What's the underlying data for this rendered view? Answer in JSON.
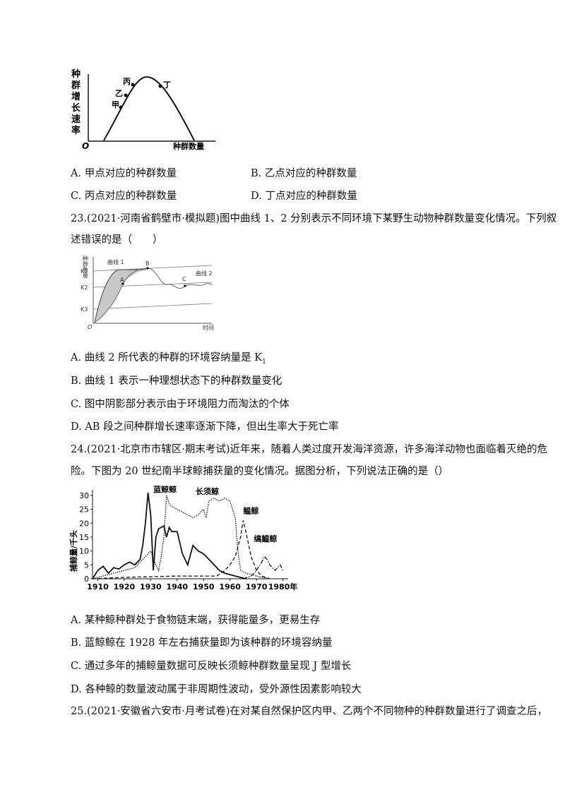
{
  "q22": {
    "figure": {
      "y_label": "种群增长速率",
      "x_label": "种群数量",
      "origin": "O",
      "points": [
        "甲",
        "乙",
        "丙",
        "丁"
      ]
    },
    "options": {
      "A": "A. 甲点对应的种群数量",
      "B": "B. 乙点对应的种群数量",
      "C": "C. 丙点对应的种群数量",
      "D": "D. 丁点对应的种群数量"
    }
  },
  "q23": {
    "stem_line1": "23.(2021·河南省鹤壁市·模拟题)图中曲线 1、2 分别表示不同环境下某野生动物种群数量变化情况。下列叙",
    "stem_line2": "述错误的是（　　）",
    "figure": {
      "y_label": "种群数量",
      "x_label": "时间",
      "origin": "O",
      "k1": "K1",
      "k2": "K2",
      "k3": "K3",
      "curve1": "曲线 1",
      "curve2": "曲线 2",
      "pA": "A",
      "pB": "B",
      "pC": "C"
    },
    "options": {
      "A_pre": "A. 曲线 2 所代表的种群的环境容纳量是 K",
      "A_sub": "1",
      "B": "B. 曲线 1 表示一种理想状态下的种群数量变化",
      "C": "C. 图中阴影部分表示由于环境阻力而淘汰的个体",
      "D": "D. AB 段之间种群增长速率逐渐下降，但出生率大于死亡率"
    }
  },
  "q24": {
    "stem_line1": "24.(2021·北京市市辖区·期末考试)近年来，随着人类过度开发海洋资源，许多海洋动物也面临着灭绝的危",
    "stem_line2": "险。下图为 20 世纪南半球鲸捕获量的变化情况。据图分析，下列说法正确的是（）",
    "options": {
      "A": "A. 某种鲸种群处于食物链末端，获得能量多，更易生存",
      "B": "B. 蓝鲸鲸在 1928 年左右捕获量即为该种群的环境容纳量",
      "C": "C. 通过多年的捕鲸量数据可反映长须鲸种群数量呈现 J 型增长",
      "D": "D. 各种鲸的数量波动属于非周期性波动，受外源性因素影响较大"
    }
  },
  "q25": {
    "stem_line1": "25.(2021·安徽省六安市·月考试卷)在对某自然保护区内甲、乙两个不同物种的种群数量进行了调查之后，"
  },
  "chart_data": {
    "type": "line",
    "ylabel": "捕鲸量/千头",
    "xlabel": "",
    "x_tick_labels": [
      "1910",
      "1920",
      "1930",
      "1940",
      "1950",
      "1960",
      "1970",
      "1980年"
    ],
    "y_tick_labels": [
      "0",
      "5",
      "10",
      "15",
      "20",
      "25",
      "30"
    ],
    "xlim": [
      1908,
      1982
    ],
    "ylim": [
      0,
      32
    ],
    "series": [
      {
        "name": "蓝鲸鲸",
        "style": "solid",
        "x": [
          1908,
          1910,
          1912,
          1914,
          1916,
          1918,
          1920,
          1922,
          1924,
          1926,
          1927,
          1928,
          1929,
          1930,
          1931,
          1932,
          1933,
          1935,
          1936,
          1937,
          1938,
          1940,
          1942,
          1944,
          1946,
          1948,
          1950,
          1952,
          1954,
          1956,
          1958,
          1960,
          1962,
          1964,
          1966
        ],
        "y": [
          0,
          3,
          4.5,
          2,
          4,
          3.5,
          5,
          6,
          5,
          7,
          12,
          20,
          31,
          23,
          3,
          15,
          18,
          19,
          15,
          18.5,
          17,
          17,
          9,
          5,
          12,
          10,
          9,
          7,
          5,
          3,
          2,
          1.5,
          1,
          0.5,
          0
        ]
      },
      {
        "name": "长须鲸",
        "style": "dotted",
        "x": [
          1908,
          1912,
          1916,
          1920,
          1924,
          1926,
          1928,
          1930,
          1932,
          1933,
          1934,
          1935,
          1936,
          1937,
          1938,
          1940,
          1942,
          1944,
          1946,
          1948,
          1950,
          1951,
          1952,
          1954,
          1956,
          1958,
          1960,
          1962,
          1963,
          1964,
          1966,
          1970,
          1975
        ],
        "y": [
          0,
          1,
          2,
          3,
          4,
          6,
          8,
          10,
          5,
          3,
          8,
          15,
          30,
          27,
          26,
          25,
          24,
          23,
          22,
          23,
          25,
          22,
          28,
          29,
          28,
          29,
          28,
          22,
          10,
          3,
          2,
          1,
          0
        ]
      },
      {
        "name": "鳁鲸",
        "style": "dashed",
        "x": [
          1908,
          1920,
          1940,
          1955,
          1958,
          1960,
          1962,
          1964,
          1965,
          1966,
          1968,
          1970,
          1972,
          1975
        ],
        "y": [
          0,
          0.5,
          1,
          1,
          3,
          5,
          8,
          15,
          21,
          17,
          8,
          3,
          1,
          0
        ]
      },
      {
        "name": "缟鰛鲸",
        "style": "dashdot",
        "x": [
          1965,
          1968,
          1970,
          1972,
          1973,
          1974,
          1975,
          1977,
          1979,
          1980
        ],
        "y": [
          0,
          1,
          3,
          6,
          8,
          7,
          5,
          3,
          5,
          3
        ]
      }
    ]
  }
}
